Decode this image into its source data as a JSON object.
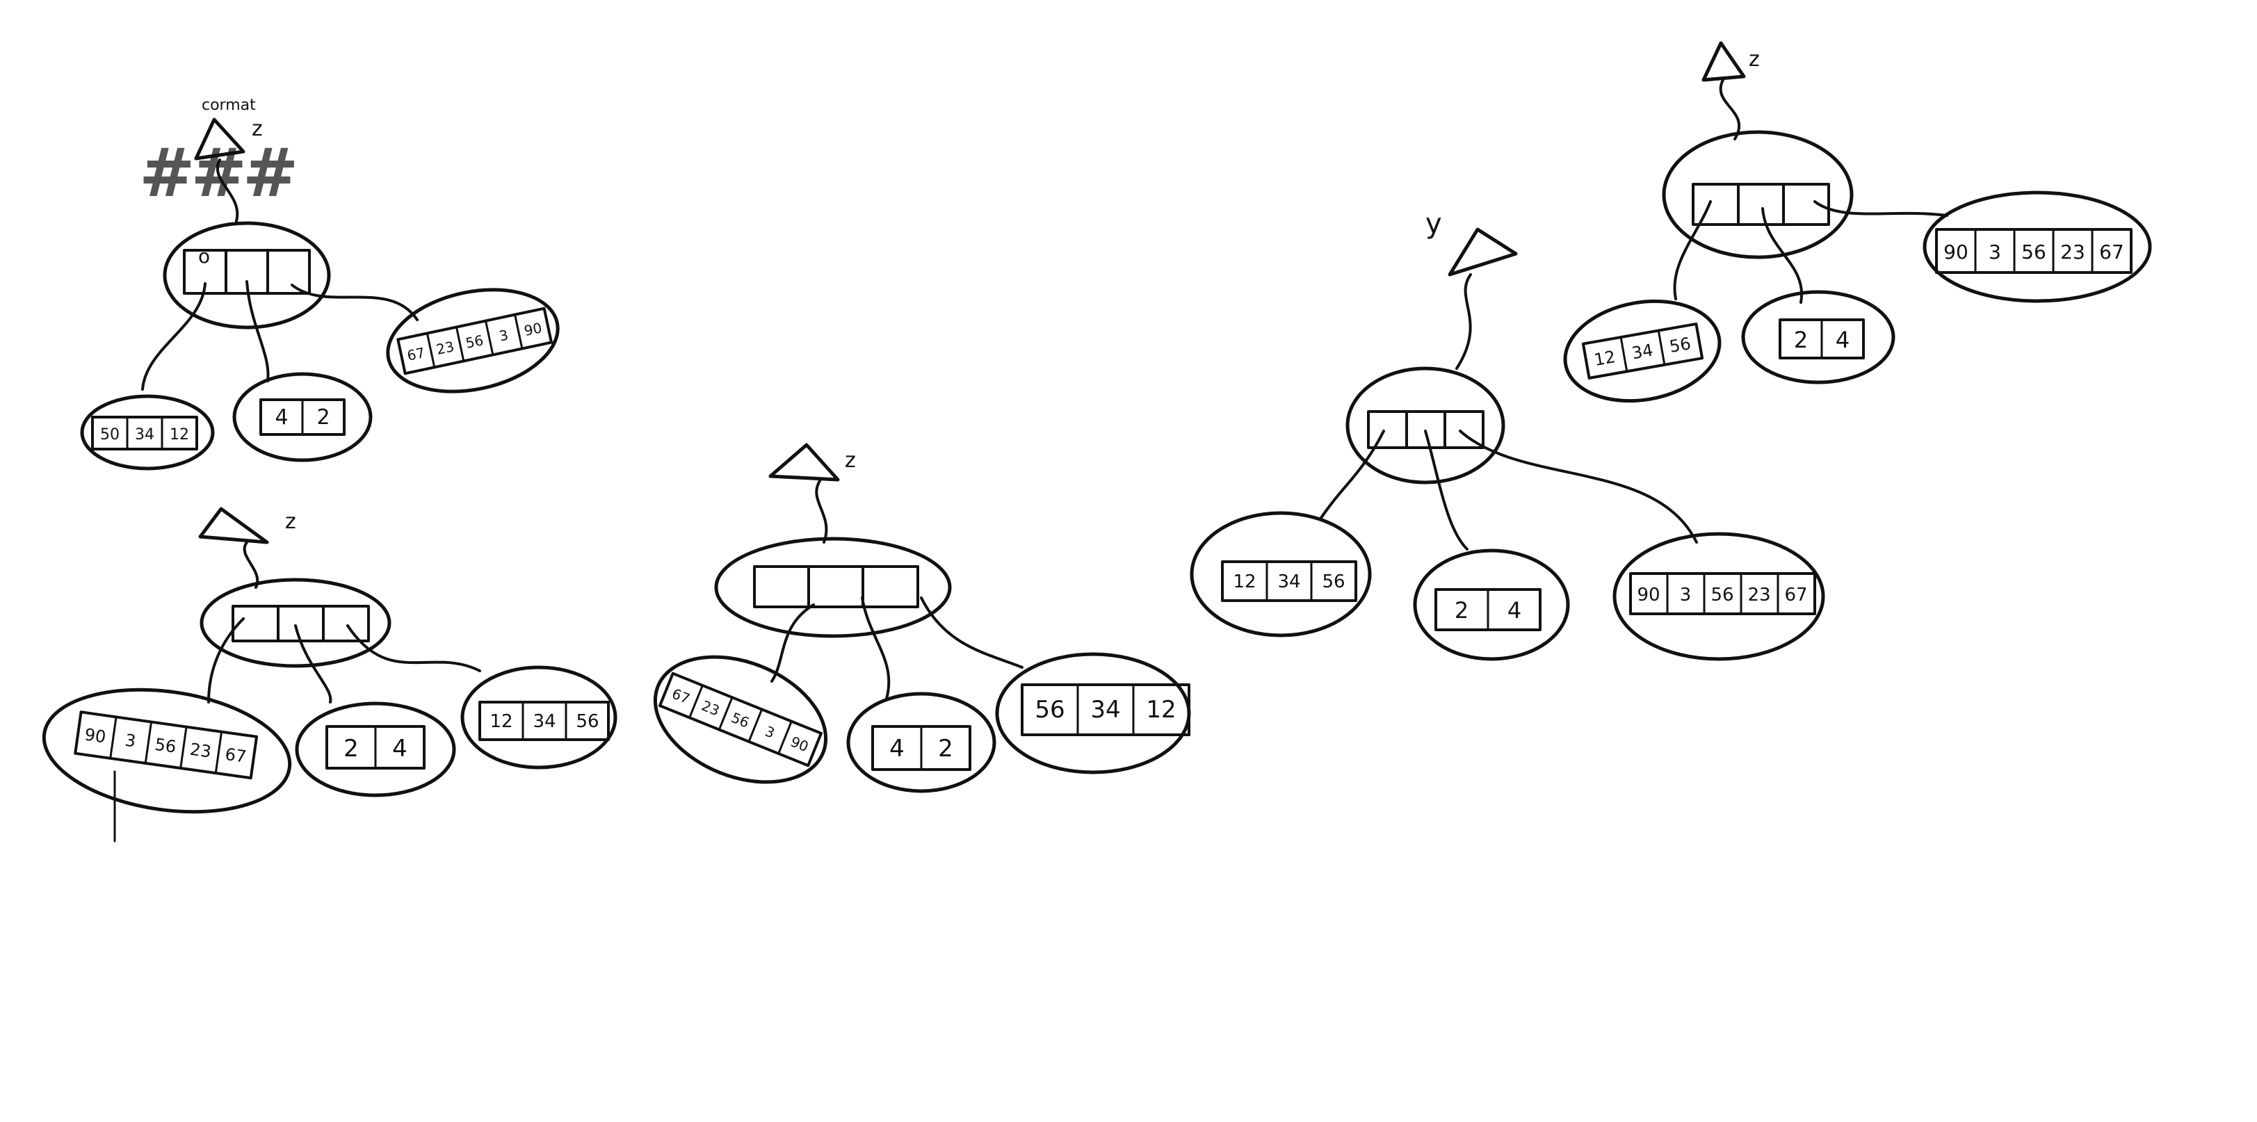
{
  "header": {
    "label": "cormat",
    "hash_mark": "###"
  },
  "trees": [
    {
      "id": "tree-top-left",
      "root_label": "z",
      "node_slots": [
        "o",
        "",
        ""
      ],
      "leaves": [
        {
          "values": [
            "50",
            "34",
            "12"
          ]
        },
        {
          "values": [
            "4",
            "2"
          ]
        },
        {
          "values": [
            "67",
            "23",
            "56",
            "3",
            "90"
          ]
        }
      ]
    },
    {
      "id": "tree-bottom-left",
      "root_label": "z",
      "node_slots": [
        "",
        "",
        ""
      ],
      "leaves": [
        {
          "values": [
            "90",
            "3",
            "56",
            "23",
            "67"
          ]
        },
        {
          "values": [
            "2",
            "4"
          ]
        },
        {
          "values": [
            "12",
            "34",
            "56"
          ]
        }
      ]
    },
    {
      "id": "tree-middle",
      "root_label": "z",
      "node_slots": [
        "",
        "",
        ""
      ],
      "leaves": [
        {
          "values": [
            "67",
            "23",
            "56",
            "3",
            "90"
          ]
        },
        {
          "values": [
            "4",
            "2"
          ]
        },
        {
          "values": [
            "56",
            "34",
            "12"
          ]
        }
      ]
    },
    {
      "id": "tree-middle-right",
      "root_label": "y",
      "node_slots": [
        "",
        "",
        ""
      ],
      "leaves": [
        {
          "values": [
            "12",
            "34",
            "56"
          ]
        },
        {
          "values": [
            "2",
            "4"
          ]
        },
        {
          "values": [
            "90",
            "3",
            "56",
            "23",
            "67"
          ]
        }
      ]
    },
    {
      "id": "tree-top-right",
      "root_label": "z",
      "node_slots": [
        "",
        "",
        ""
      ],
      "leaves": [
        {
          "values": [
            "12",
            "34",
            "56"
          ]
        },
        {
          "values": [
            "2",
            "4"
          ]
        },
        {
          "values": [
            "90",
            "3",
            "56",
            "23",
            "67"
          ]
        }
      ]
    }
  ]
}
